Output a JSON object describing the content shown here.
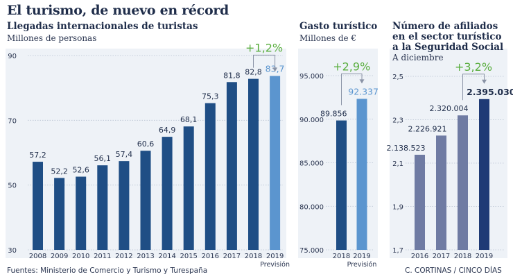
{
  "header": {
    "title": "El turismo, de nuevo en récord"
  },
  "footer": {
    "source": "Fuentes: Ministerio de Comercio y Turismo y Turespaña",
    "credit": "C. CORTINAS / CINCO DÍAS"
  },
  "chart_data": [
    {
      "type": "bar",
      "title": "Llegadas internacionales de turistas",
      "unit_label": "Millones de personas",
      "categories": [
        "2008",
        "2009",
        "2010",
        "2011",
        "2012",
        "2013",
        "2014",
        "2015",
        "2016",
        "2017",
        "2018",
        "2019"
      ],
      "values": [
        57.2,
        52.2,
        52.6,
        56.1,
        57.4,
        60.6,
        64.9,
        68.1,
        75.3,
        81.8,
        82.8,
        83.7
      ],
      "value_labels": [
        "57,2",
        "52,2",
        "52,6",
        "56,1",
        "57,4",
        "60,6",
        "64,9",
        "68,1",
        "75,3",
        "81,8",
        "82,8",
        "83,7"
      ],
      "yticks": [
        30,
        50,
        70,
        90
      ],
      "ytick_labels": [
        "30",
        "50",
        "70",
        "90"
      ],
      "ylim": [
        30,
        90
      ],
      "highlight_index": 11,
      "forecast_label": "Previsión",
      "change_label": "+1,2%",
      "colors": {
        "bar": "#1f4e85",
        "highlight": "#5b95cf",
        "change": "#5aae3f"
      }
    },
    {
      "type": "bar",
      "title": "Gasto turístico",
      "unit_label": "Millones de €",
      "categories": [
        "2018",
        "2019"
      ],
      "values": [
        89856,
        92337
      ],
      "value_labels": [
        "89.856",
        "92.337"
      ],
      "yticks": [
        75000,
        80000,
        85000,
        90000,
        95000
      ],
      "ytick_labels": [
        "75.000",
        "80.000",
        "85.000",
        "90.000",
        "95.000"
      ],
      "ylim": [
        75000,
        95000
      ],
      "highlight_index": 1,
      "forecast_label": "Previsión",
      "change_label": "+2,9%",
      "colors": {
        "bar": "#1f4e85",
        "highlight": "#5b95cf",
        "change": "#5aae3f"
      }
    },
    {
      "type": "bar",
      "title_lines": [
        "Número de afiliados",
        "en el sector turístico",
        "a la Seguridad Social"
      ],
      "unit_label": "A diciembre",
      "categories": [
        "2016",
        "2017",
        "2018",
        "2019"
      ],
      "values": [
        2.138523,
        2.226921,
        2.320004,
        2.39503
      ],
      "value_labels": [
        "2.138.523",
        "2.226.921",
        "2.320.004",
        "2.395.030"
      ],
      "yticks": [
        1.7,
        1.9,
        2.1,
        2.3,
        2.5
      ],
      "ytick_labels": [
        "1,7",
        "1,9",
        "2,1",
        "2,3",
        "2,5"
      ],
      "ylim": [
        1.7,
        2.5
      ],
      "highlight_index": 3,
      "change_label": "+3,2%",
      "colors": {
        "bars": [
          "#6f7ba3",
          "#6f7ba3",
          "#6f7ba3",
          "#1f3a75"
        ],
        "change": "#5aae3f"
      }
    }
  ]
}
